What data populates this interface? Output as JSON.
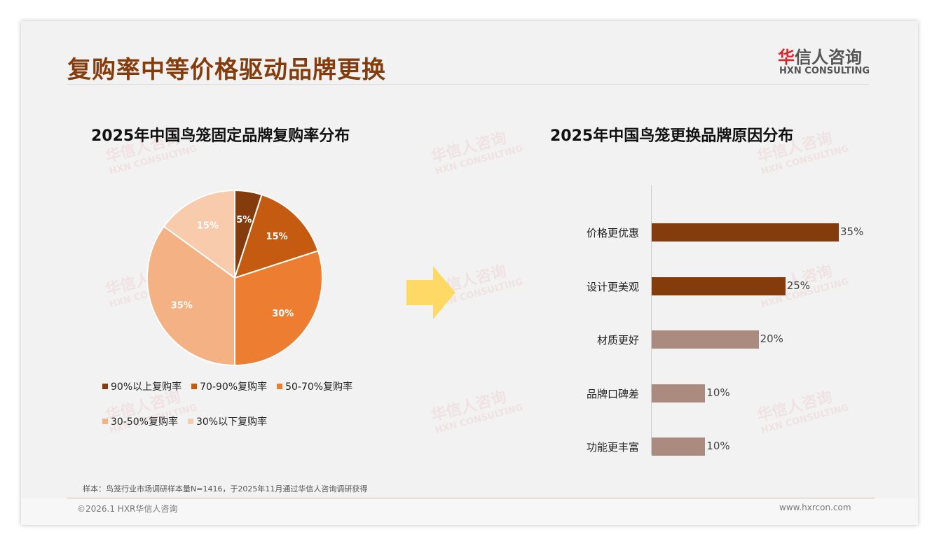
{
  "header": {
    "title": "复购率中等价格驱动品牌更换",
    "logo_cn_red": "华",
    "logo_cn": "信人咨询",
    "logo_en": "HXN CONSULTING"
  },
  "watermark": {
    "cn": "华信人咨询",
    "en": "HXN CONSULTING"
  },
  "chart_data": [
    {
      "type": "pie",
      "title": "2025年中国鸟笼固定品牌复购率分布",
      "categories": [
        "90%以上复购率",
        "70-90%复购率",
        "50-70%复购率",
        "30-50%复购率",
        "30%以下复购率"
      ],
      "values": [
        5,
        15,
        30,
        35,
        15
      ],
      "labels": [
        "5%",
        "15%",
        "30%",
        "35%",
        "15%"
      ],
      "colors": [
        "#843c0c",
        "#c55a11",
        "#ed7d31",
        "#f4b183",
        "#f8cbad"
      ],
      "label_colors": [
        "#fff",
        "#fff",
        "#fff",
        "#fff",
        "#fff"
      ],
      "legend": "bottom"
    },
    {
      "type": "bar",
      "orientation": "horizontal",
      "title": "2025年中国鸟笼更换品牌原因分布",
      "categories": [
        "价格更优惠",
        "设计更美观",
        "材质更好",
        "品牌口碑差",
        "功能更丰富"
      ],
      "values": [
        35,
        25,
        20,
        10,
        10
      ],
      "labels": [
        "35%",
        "25%",
        "20%",
        "10%",
        "10%"
      ],
      "colors": [
        "#843c0c",
        "#843c0c",
        "#ab8b80",
        "#ab8b80",
        "#ab8b80"
      ],
      "xlim": [
        0,
        35
      ]
    }
  ],
  "footer": {
    "note": "样本：鸟笼行业市场调研样本量N=1416，于2025年11月通过华信人咨询调研获得",
    "copyright": "©2026.1 HXR华信人咨询",
    "url": "www.hxrcon.com"
  }
}
